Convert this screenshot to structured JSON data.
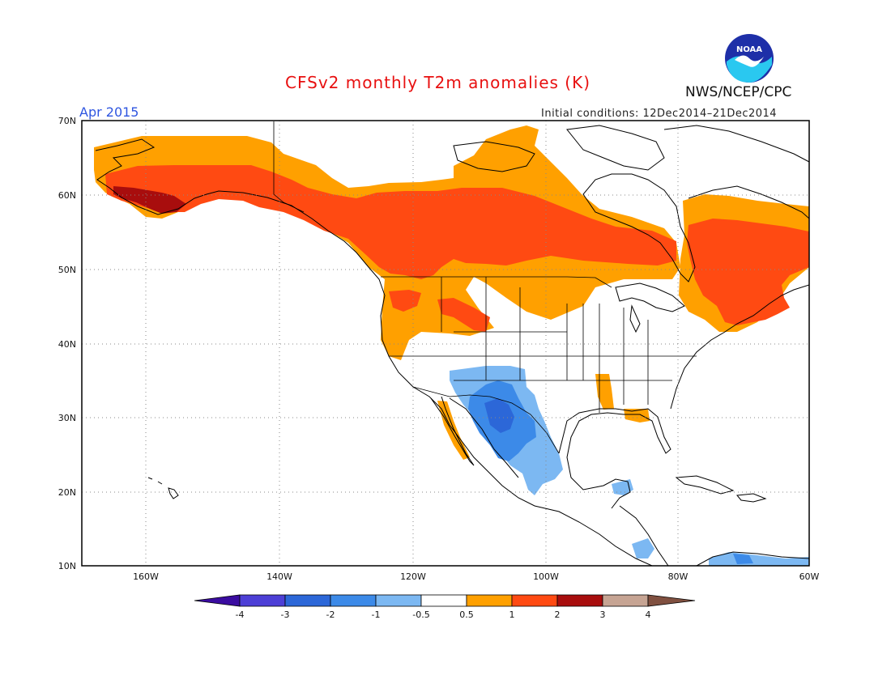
{
  "header": {
    "title": "CFSv2 monthly T2m anomalies (K)",
    "month": "Apr 2015",
    "initial_conditions": "Initial conditions: 12Dec2014–21Dec2014",
    "agency": "NWS/NCEP/CPC",
    "logo_text": "NOAA"
  },
  "map": {
    "lat_ticks": [
      "70N",
      "60N",
      "50N",
      "40N",
      "30N",
      "20N",
      "10N"
    ],
    "lon_ticks": [
      "160W",
      "140W",
      "120W",
      "100W",
      "80W",
      "60W"
    ],
    "lat_range": [
      10,
      70
    ],
    "lon_range": [
      -172,
      -60
    ],
    "water_color": "#ffffff",
    "coastline_color": "#000000",
    "grid": "dotted"
  },
  "colorbar": {
    "labels": [
      "-4",
      "-3",
      "-2",
      "-1",
      "-0.5",
      "0.5",
      "1",
      "2",
      "3",
      "4"
    ],
    "colors": [
      "#3a0ca0",
      "#4d3fd6",
      "#2c67d8",
      "#3c8ae8",
      "#7cb8f2",
      "#ffffff",
      "#ffa000",
      "#ff4a12",
      "#a80d0d",
      "#c6a493",
      "#805040"
    ]
  }
}
